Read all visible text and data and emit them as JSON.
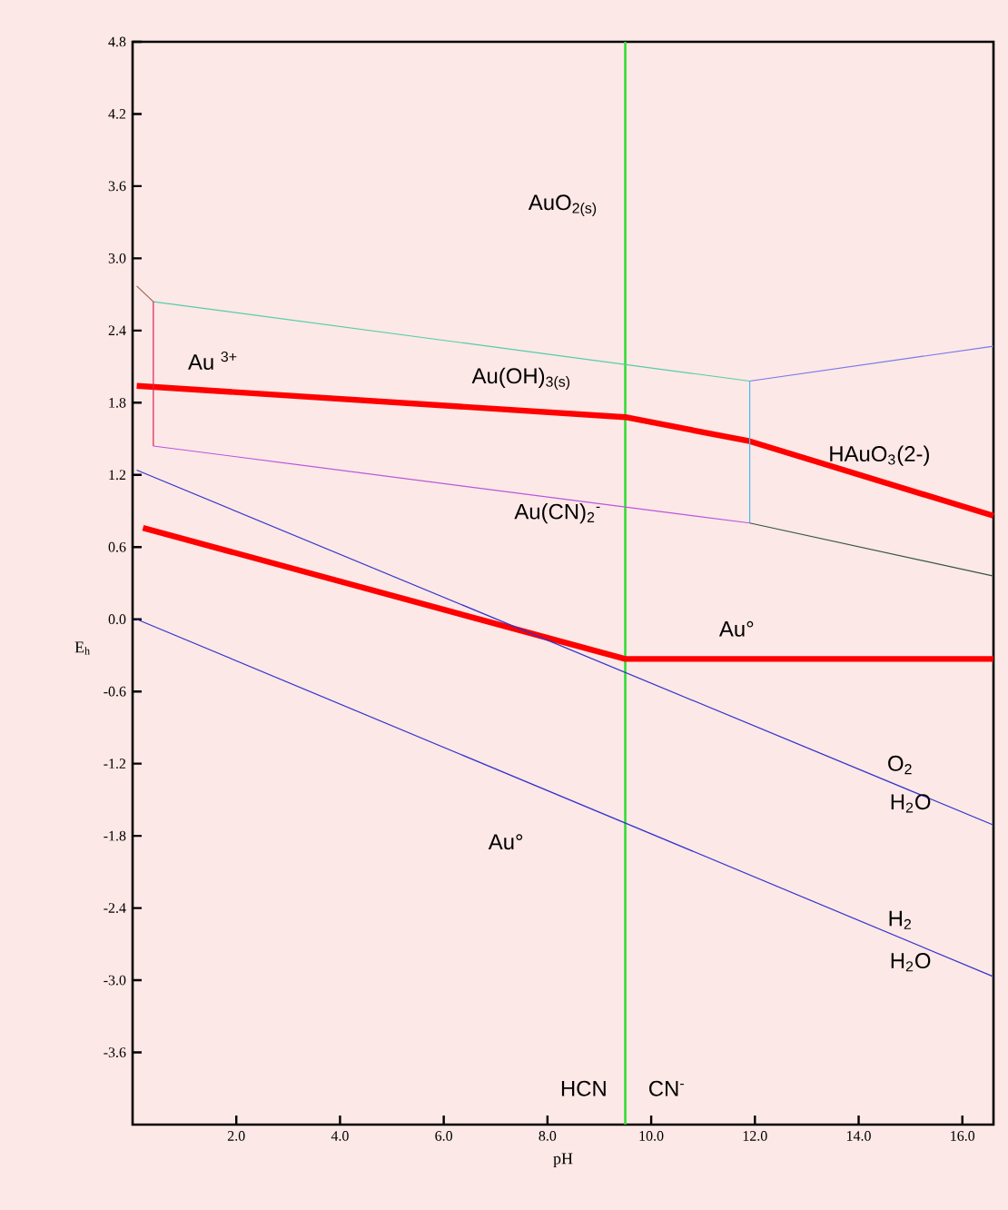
{
  "chart_data": {
    "type": "line",
    "xlabel": "pH",
    "ylabel": "E$_{h}$",
    "xlim": [
      0,
      16.6
    ],
    "ylim": [
      -4.2,
      4.8
    ],
    "xticks": [
      {
        "value": 2,
        "label": "2.0"
      },
      {
        "value": 4,
        "label": "4.0"
      },
      {
        "value": 6,
        "label": "6.0"
      },
      {
        "value": 8,
        "label": "8.0"
      },
      {
        "value": 10,
        "label": "10.0"
      },
      {
        "value": 12,
        "label": "12.0"
      },
      {
        "value": 14,
        "label": "14.0"
      },
      {
        "value": 16,
        "label": "16.0"
      }
    ],
    "yticks": [
      4.8,
      4.2,
      3.6,
      {
        "value": 3,
        "label": "3.0"
      },
      2.4,
      1.8,
      1.2,
      0.6,
      {
        "value": 0,
        "label": "0.0"
      },
      -0.6,
      -1.2,
      -1.8,
      -2.4,
      {
        "value": -3,
        "label": "-3.0"
      },
      -3.6
    ],
    "grid": false,
    "marker": "none",
    "line_style": "solid",
    "series": [
      {
        "color": "#ff0000",
        "x": [
          0.08,
          9.5,
          11.9,
          16.6
        ],
        "values": [
          1.94,
          1.68,
          1.48,
          0.86
        ]
      },
      {
        "color": "#ff0000",
        "x": [
          0.2,
          9.5,
          16.6
        ],
        "values": [
          0.76,
          -0.33,
          -0.33
        ]
      },
      {
        "color": "#996655",
        "x": [
          0.08,
          0.4
        ],
        "values": [
          2.77,
          2.64
        ]
      },
      {
        "color": "#55ccaa",
        "x": [
          0.4,
          11.9
        ],
        "values": [
          2.64,
          1.98
        ]
      },
      {
        "color": "#7777ee",
        "x": [
          11.9,
          16.6
        ],
        "values": [
          1.98,
          2.27
        ]
      },
      {
        "color": "#dd2255",
        "x": [
          0.4,
          0.4
        ],
        "values": [
          2.64,
          1.44
        ]
      },
      {
        "color": "#44bbee",
        "x": [
          11.9,
          11.9
        ],
        "values": [
          1.98,
          0.8
        ]
      },
      {
        "color": "#bb55dd",
        "x": [
          0.4,
          11.9
        ],
        "values": [
          1.44,
          0.8
        ]
      },
      {
        "color": "#335544",
        "x": [
          11.9,
          16.6
        ],
        "values": [
          0.8,
          0.36
        ]
      },
      {
        "color": "#3333cc",
        "x": [
          0.08,
          16.6
        ],
        "values": [
          1.24,
          -1.71
        ]
      },
      {
        "color": "#3333cc",
        "x": [
          0.08,
          16.6
        ],
        "values": [
          0.0,
          -2.97
        ]
      }
    ],
    "ref_lines": [
      {
        "axis": "x",
        "value": 9.5,
        "color": "#33dd33"
      }
    ],
    "annotations": [
      "AuO$_{2(s)}$",
      "Au $^{3+}$",
      "Au(OH)$_{3(s)}$",
      "HAuO$_{3}$(2-)",
      "Au(CN)$_{2}$$^{-}$",
      "Au°",
      "Au°",
      "O$_{2}$",
      "H$_{2}$O",
      "H$_{2}$",
      "H$_{2}$O",
      "HCN",
      "CN$^{-}$"
    ]
  }
}
